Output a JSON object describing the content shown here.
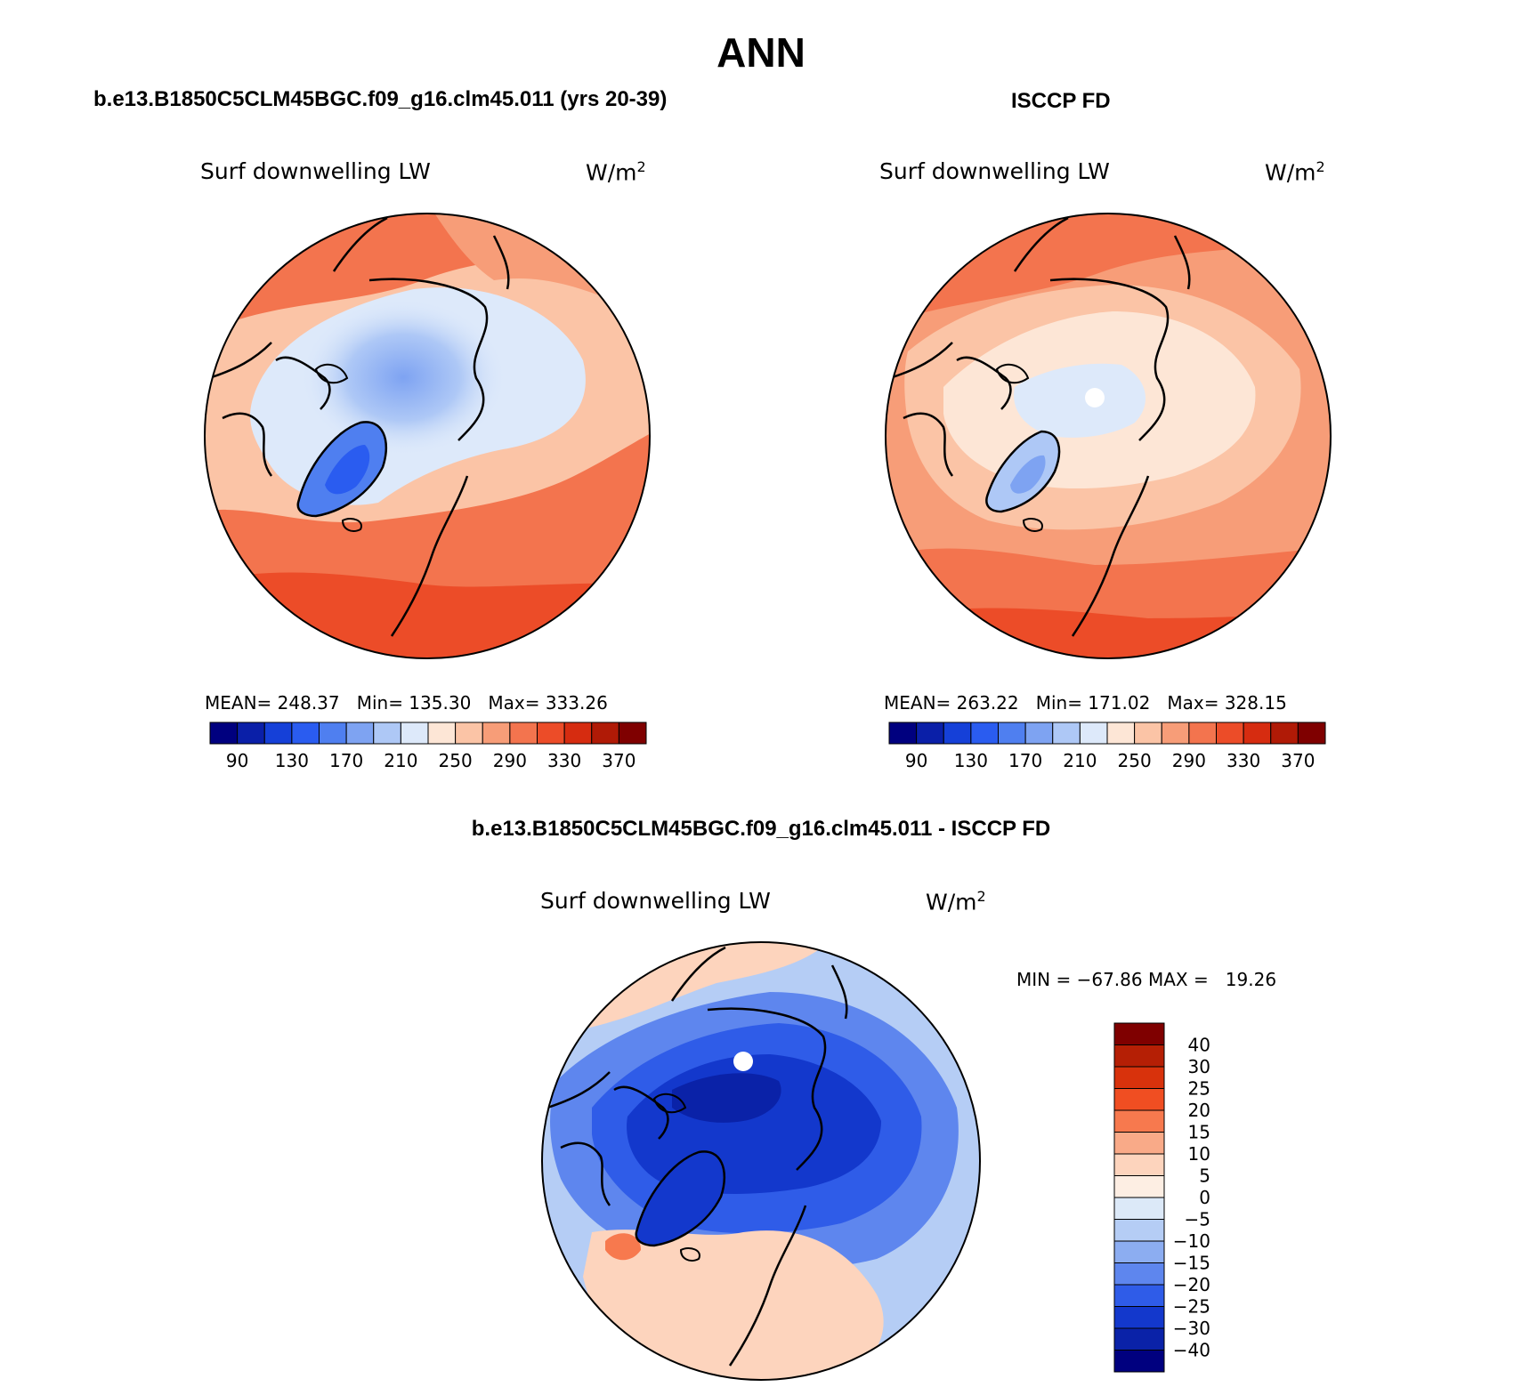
{
  "page_title": "ANN",
  "panels": [
    {
      "heading": "b.e13.B1850C5CLM45BGC.f09_g16.clm45.011 (yrs 20-39)",
      "variable": "Surf downwelling LW",
      "units": "W/m",
      "units_exp": "2",
      "stats": "MEAN= 248.37   Min= 135.30   Max= 333.26",
      "colorbar_labels": [
        "90",
        "130",
        "170",
        "210",
        "250",
        "290",
        "330",
        "370"
      ]
    },
    {
      "heading": "ISCCP FD",
      "variable": "Surf downwelling LW",
      "units": "W/m",
      "units_exp": "2",
      "stats": "MEAN= 263.22   Min= 171.02   Max= 328.15",
      "colorbar_labels": [
        "90",
        "130",
        "170",
        "210",
        "250",
        "290",
        "330",
        "370"
      ]
    },
    {
      "heading": "b.e13.B1850C5CLM45BGC.f09_g16.clm45.011 - ISCCP FD",
      "variable": "Surf downwelling LW",
      "units": "W/m",
      "units_exp": "2",
      "stats": "MIN = −67.86 MAX =   19.26",
      "colorbar_labels": [
        "40",
        "30",
        "25",
        "20",
        "15",
        "10",
        "5",
        "0",
        "−5",
        "−10",
        "−15",
        "−20",
        "−25",
        "−30",
        "−40"
      ]
    }
  ],
  "colors": {
    "abs_scale": [
      "#00007f",
      "#0a1fa8",
      "#1540d8",
      "#2a5cf0",
      "#4f7ff0",
      "#7ea3f2",
      "#aec8f6",
      "#dde9fa",
      "#fde6d6",
      "#fbc4a6",
      "#f79d78",
      "#f3744e",
      "#ec4c28",
      "#d62c10",
      "#b01a06",
      "#7f0000"
    ],
    "diff_scale_top_to_bottom": [
      "#7f0000",
      "#b51f05",
      "#d8320c",
      "#f04e22",
      "#f7794e",
      "#f9aa88",
      "#fdd4bd",
      "#fdeee3",
      "#dce9f8",
      "#b5cdf5",
      "#8cadf1",
      "#5e86ee",
      "#2f5ce8",
      "#1338cc",
      "#0a22a8",
      "#00007f"
    ]
  }
}
